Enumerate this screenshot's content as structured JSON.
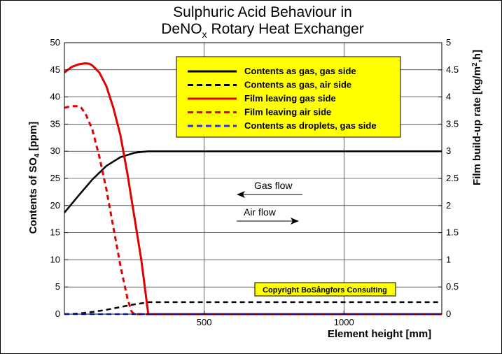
{
  "chart_data": {
    "type": "line",
    "title_line1": "Sulphuric Acid Behaviour in",
    "title_line2_prefix": "DeNO",
    "title_line2_sub": "x",
    "title_line2_suffix": " Rotary Heat Exchanger",
    "xlabel": "Element height [mm]",
    "ylabel_prefix": "Contents of SO",
    "ylabel_sub": "4",
    "ylabel_suffix": " [ppm]",
    "y2label_prefix": "Film build-up rate [kg/m",
    "y2label_sup": "2",
    "y2label_suffix": ",h]",
    "xlim": [
      0,
      1350
    ],
    "ylim": [
      0,
      50
    ],
    "y2lim": [
      0,
      5
    ],
    "x_ticks": [
      500,
      1000
    ],
    "x_tick_labels": [
      "500",
      "1000"
    ],
    "y_ticks": [
      0,
      5,
      10,
      15,
      20,
      25,
      30,
      35,
      40,
      45,
      50
    ],
    "y_tick_labels": [
      "0",
      "5",
      "10",
      "15",
      "20",
      "25",
      "30",
      "35",
      "40",
      "45",
      "50"
    ],
    "y2_ticks": [
      0,
      0.5,
      1,
      1.5,
      2,
      2.5,
      3,
      3.5,
      4,
      4.5,
      5
    ],
    "y2_tick_labels": [
      "0",
      "0.5",
      "1",
      "1.5",
      "2",
      "2.5",
      "3",
      "3.5",
      "4",
      "4.5",
      "5"
    ],
    "grid": true,
    "legend_position": "top-right",
    "series": [
      {
        "name": "Contents as gas, gas side",
        "axis": "left",
        "color": "#000000",
        "dash": "solid",
        "x": [
          0,
          50,
          100,
          150,
          200,
          250,
          280,
          300,
          1350
        ],
        "y": [
          18.7,
          21.8,
          24.8,
          27.3,
          28.9,
          29.7,
          29.9,
          30,
          30
        ]
      },
      {
        "name": "Contents as gas, air side",
        "axis": "left",
        "color": "#000000",
        "dash": "dashed",
        "x": [
          0,
          50,
          100,
          150,
          200,
          250,
          290,
          300,
          1350
        ],
        "y": [
          0,
          0.1,
          0.4,
          0.8,
          1.3,
          1.8,
          2.1,
          2.2,
          2.2
        ]
      },
      {
        "name": "Film leaving gas side",
        "axis": "right",
        "color": "#e00000",
        "dash": "solid",
        "x": [
          0,
          25,
          50,
          75,
          90,
          100,
          125,
          150,
          175,
          200,
          225,
          250,
          275,
          290,
          300,
          1350
        ],
        "y": [
          4.45,
          4.55,
          4.6,
          4.62,
          4.61,
          4.58,
          4.45,
          4.2,
          3.8,
          3.3,
          2.6,
          1.8,
          1.0,
          0.4,
          0,
          0
        ]
      },
      {
        "name": "Film leaving air side",
        "axis": "right",
        "color": "#e00000",
        "dash": "dashed",
        "x": [
          0,
          25,
          50,
          60,
          75,
          100,
          125,
          150,
          175,
          200,
          225,
          240,
          250,
          1350
        ],
        "y": [
          3.8,
          3.83,
          3.83,
          3.8,
          3.7,
          3.4,
          2.9,
          2.3,
          1.6,
          0.9,
          0.3,
          0.05,
          0,
          0
        ]
      },
      {
        "name": "Contents as droplets, gas side",
        "axis": "left",
        "color": "#2030ff",
        "dash": "dashed",
        "x": [
          0,
          1350
        ],
        "y": [
          0,
          0
        ]
      }
    ],
    "annotations": {
      "gas_flow": "Gas flow",
      "air_flow": "Air flow",
      "copyright": "Copyright BoSångfors Consulting"
    },
    "colors": {
      "background": "#ffffff",
      "legend_background": "#ffff00",
      "copyright_background": "#ffff00",
      "grid": "#000000"
    }
  }
}
